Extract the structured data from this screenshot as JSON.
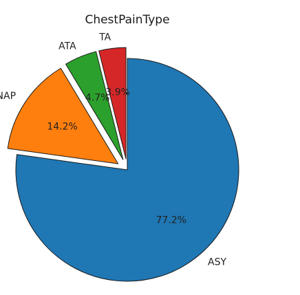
{
  "chart_data": {
    "type": "pie",
    "title": "ChestPainType",
    "slices": [
      {
        "label": "ASY",
        "value": 77.2,
        "pct_label": "77.2%",
        "color": "#1f77b4",
        "exploded": false
      },
      {
        "label": "NAP",
        "value": 14.2,
        "pct_label": "14.2%",
        "color": "#ff7f0e",
        "exploded": true
      },
      {
        "label": "ATA",
        "value": 4.7,
        "pct_label": "4.7%",
        "color": "#2ca02c",
        "exploded": true
      },
      {
        "label": "TA",
        "value": 3.9,
        "pct_label": "3.9%",
        "color": "#d62728",
        "exploded": true
      }
    ],
    "start_angle": 90,
    "direction": "clockwise"
  }
}
